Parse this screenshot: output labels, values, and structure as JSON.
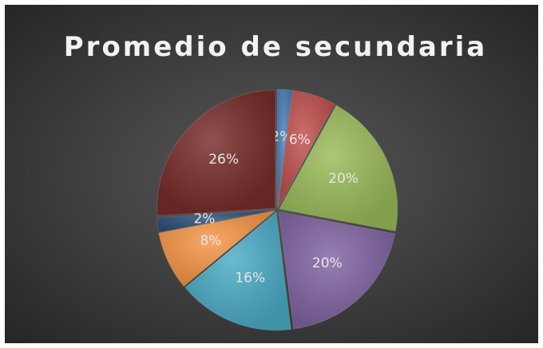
{
  "chart_data": {
    "type": "pie",
    "title": "Promedio de secundaria",
    "values": [
      2,
      6,
      20,
      20,
      16,
      8,
      2,
      26
    ],
    "value_labels": [
      "2%",
      "6%",
      "20%",
      "20%",
      "16%",
      "8%",
      "2%",
      "26%"
    ],
    "colors": [
      "#4a7ebb",
      "#c0504d",
      "#9bbb59",
      "#8064a2",
      "#4bacc6",
      "#f79646",
      "#2c4d75",
      "#772c2a"
    ]
  }
}
